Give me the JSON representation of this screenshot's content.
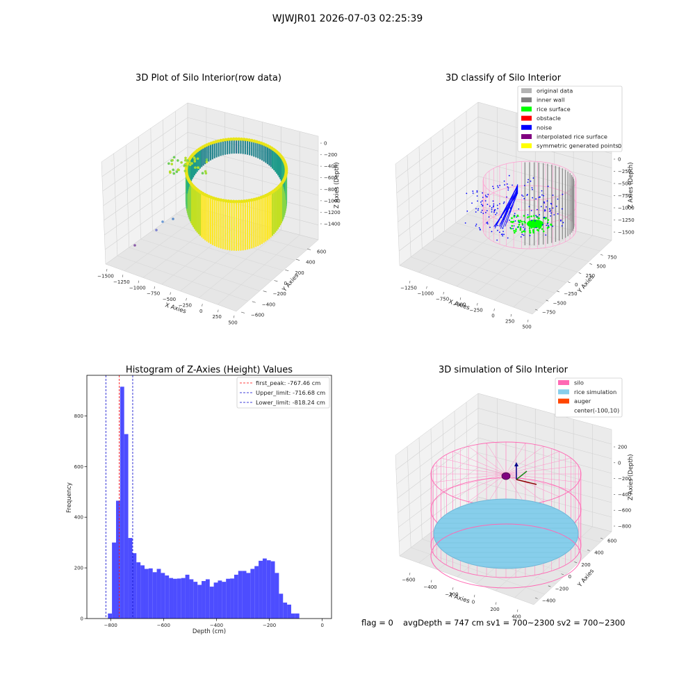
{
  "figure": {
    "suptitle": "WJWJR01 2026-07-03 02:25:39",
    "bottom_text": {
      "flag": "flag = 0",
      "avg": "avgDepth = 747 cm  sv1 = 700~2300  sv2 = 700~2300"
    }
  },
  "colors": {
    "histogram_bar": "#4d4dff",
    "first_peak_line": "#ff0000",
    "limit_lines": "#0000cc",
    "legend_original": "#b3b3b3",
    "legend_wall": "#808080",
    "legend_rice": "#00ff00",
    "legend_obstacle": "#ff0000",
    "legend_noise": "#0000ff",
    "legend_interp": "#800080",
    "legend_symm": "#ffff00",
    "legend_silo": "#ff69b4",
    "legend_rice_sim": "#87ceeb",
    "legend_auger": "#ff4500",
    "pane_gray": "#f2f2f2"
  },
  "chart_data": [
    {
      "type": "scatter",
      "subtype": "3d-scatter",
      "title": "3D Plot of Silo Interior(row data)",
      "xlabel": "X Axies",
      "ylabel": "Y Axies",
      "zlabel": "Z Axies (Depth)",
      "x_ticks": [
        "−1500",
        "−1250",
        "−1000",
        "−750",
        "−500",
        "−250",
        "0",
        "250",
        "500"
      ],
      "y_ticks": [
        "−600",
        "−400",
        "−200",
        "0",
        "200",
        "400",
        "600"
      ],
      "z_ticks": [
        "0",
        "−200",
        "−400",
        "−600",
        "−800",
        "−1000",
        "−1200",
        "−1400"
      ],
      "xlim": [
        -1500,
        500
      ],
      "ylim": [
        -600,
        600
      ],
      "zlim": [
        -1500,
        0
      ],
      "colormap": "viridis"
    },
    {
      "type": "scatter",
      "subtype": "3d-scatter",
      "title": "3D classify of Silo Interior",
      "xlabel": "X Axies",
      "ylabel": "Y Axies",
      "zlabel": "Z Axies (Depth)",
      "x_ticks": [
        "−1250",
        "−1000",
        "−750",
        "−500",
        "−250",
        "0",
        "250",
        "500"
      ],
      "y_ticks": [
        "−750",
        "−500",
        "−250",
        "0",
        "250",
        "500",
        "750"
      ],
      "z_ticks": [
        "0",
        "−250",
        "−500",
        "−750",
        "−1000",
        "−1250",
        "−1500"
      ],
      "z_partial_tick": "0",
      "xlim": [
        -1250,
        500
      ],
      "ylim": [
        -750,
        750
      ],
      "zlim": [
        -1500,
        0
      ],
      "legend": [
        "original data",
        "inner wall",
        "rice surface",
        "obstacle",
        "noise",
        "interpolated rice surface",
        "symmetric generated points"
      ],
      "legend_position": "top-right"
    },
    {
      "type": "bar",
      "subtype": "histogram",
      "title": "Histogram of Z-Axies (Height) Values",
      "xlabel": "Depth (cm)",
      "ylabel": "Frequency",
      "xlim": [
        -890,
        35
      ],
      "ylim": [
        0,
        960
      ],
      "x_ticks": [
        "−800",
        "−600",
        "−400",
        "−200",
        "0"
      ],
      "x_tick_values": [
        -800,
        -600,
        -400,
        -200,
        0
      ],
      "y_ticks": [
        "0",
        "200",
        "400",
        "600",
        "800"
      ],
      "y_tick_values": [
        0,
        200,
        400,
        600,
        800
      ],
      "bin_width": 15.4,
      "bin_start": -810.5,
      "values": [
        20,
        300,
        465,
        915,
        728,
        318,
        258,
        222,
        210,
        196,
        198,
        183,
        196,
        180,
        170,
        160,
        157,
        158,
        160,
        173,
        155,
        145,
        133,
        148,
        155,
        126,
        142,
        150,
        145,
        157,
        158,
        173,
        188,
        188,
        180,
        196,
        207,
        228,
        237,
        230,
        226,
        180,
        98,
        63,
        55,
        20,
        20
      ],
      "vlines": [
        {
          "x": -767.46,
          "style": "dashed",
          "label": "first_peak: -767.46 cm"
        },
        {
          "x": -716.68,
          "style": "dashed",
          "label": "Upper_limit: -716.68 cm"
        },
        {
          "x": -818.24,
          "style": "dashed",
          "label": "Lower_limit: -818.24 cm"
        }
      ],
      "legend_position": "top-right"
    },
    {
      "type": "scatter",
      "subtype": "3d-simulation",
      "title": "3D simulation of Silo Interior",
      "xlabel": "X Axies",
      "ylabel": "Y Axies",
      "zlabel": "Z Axies (Depth)",
      "x_ticks": [
        "−600",
        "−400",
        "−200",
        "0",
        "200",
        "400"
      ],
      "y_ticks": [
        "−400",
        "−200",
        "0",
        "200",
        "400",
        "600"
      ],
      "z_ticks": [
        "200",
        "0",
        "−200",
        "−400",
        "−600",
        "−800"
      ],
      "xlim": [
        -700,
        500
      ],
      "ylim": [
        -500,
        600
      ],
      "zlim": [
        -900,
        300
      ],
      "legend": [
        "silo",
        "rice simulation",
        "auger",
        "center(-100,10)"
      ],
      "legend_position": "top-right"
    }
  ]
}
